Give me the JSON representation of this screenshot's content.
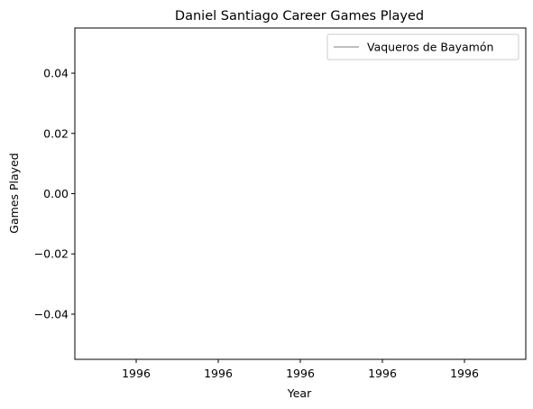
{
  "chart_data": {
    "type": "line",
    "title": "Daniel Santiago Career Games Played",
    "xlabel": "Year",
    "ylabel": "Games Played",
    "x_tick_labels": [
      "1996",
      "1996",
      "1996",
      "1996",
      "1996"
    ],
    "y_ticks": [
      0.04,
      0.02,
      0.0,
      -0.02,
      -0.04
    ],
    "y_tick_labels": [
      "0.04",
      "0.02",
      "0.00",
      "−0.02",
      "−0.04"
    ],
    "ylim": [
      -0.055,
      0.055
    ],
    "grid": false,
    "legend_position": "top-right",
    "series": [
      {
        "name": "Vaqueros de Bayamón",
        "color": "#bfbfbf",
        "x": [],
        "y": []
      }
    ]
  }
}
